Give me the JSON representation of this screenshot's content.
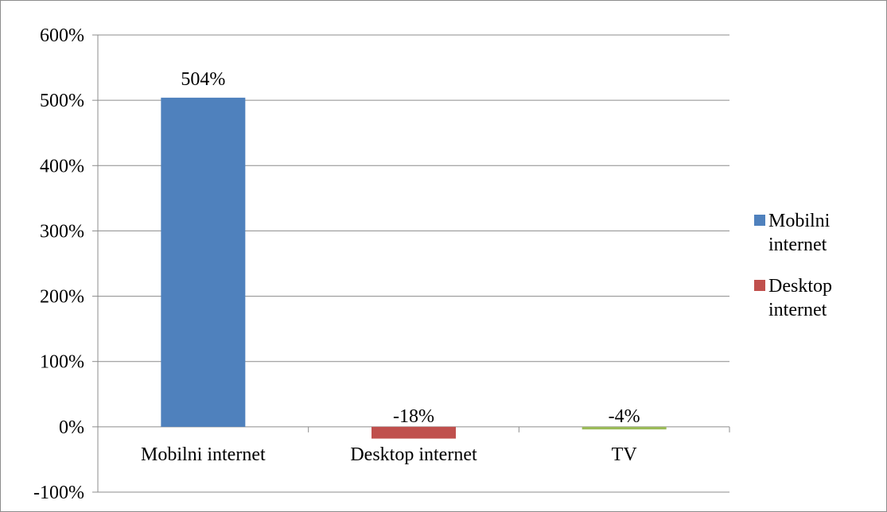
{
  "chart_data": {
    "type": "bar",
    "categories": [
      "Mobilni internet",
      "Desktop internet",
      "TV"
    ],
    "series": [
      {
        "name": "Mobilni internet",
        "values": [
          504,
          null,
          null
        ],
        "color": "#4f81bd"
      },
      {
        "name": "Desktop internet",
        "values": [
          null,
          -18,
          null
        ],
        "color": "#c0504d"
      },
      {
        "name": "",
        "values": [
          null,
          null,
          -4
        ],
        "color": "#9bbb59"
      }
    ],
    "data_labels": [
      "504%",
      "-18%",
      "-4%"
    ],
    "y_ticks": [
      "-100%",
      "0%",
      "100%",
      "200%",
      "300%",
      "400%",
      "500%",
      "600%"
    ],
    "ylim": [
      -100,
      600
    ],
    "grid": true,
    "legend": {
      "position": "right",
      "entries": [
        {
          "lines": [
            "Mobilni",
            "internet"
          ],
          "color": "#4f81bd"
        },
        {
          "lines": [
            "Desktop",
            "internet"
          ],
          "color": "#c0504d"
        }
      ]
    },
    "title": "",
    "xlabel": "",
    "ylabel": ""
  }
}
